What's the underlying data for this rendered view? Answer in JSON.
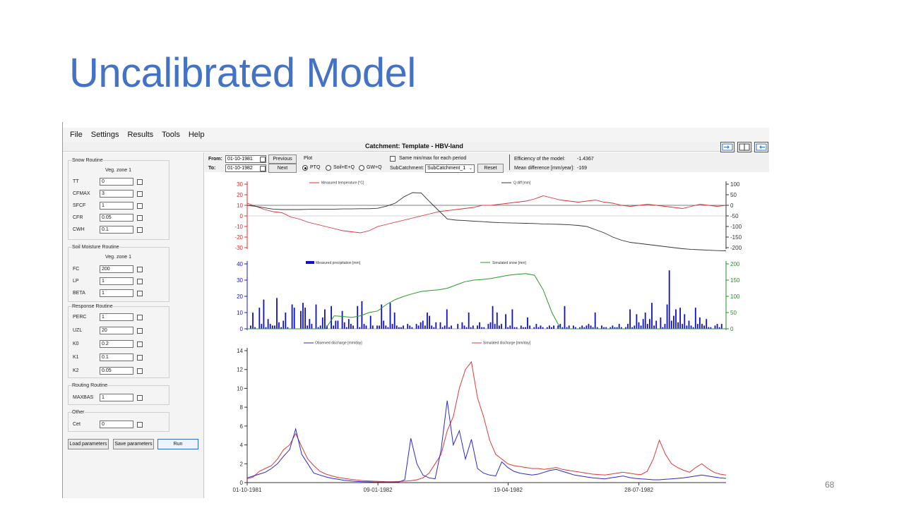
{
  "slide": {
    "title": "Uncalibrated Model",
    "number": "68"
  },
  "app": {
    "menu": [
      "File",
      "Settings",
      "Results",
      "Tools",
      "Help"
    ],
    "catchment_title": "Catchment: Template - HBV-land"
  },
  "left": {
    "snow": {
      "title": "Snow Routine",
      "zone": "Veg. zone 1",
      "params": [
        {
          "label": "TT",
          "value": "0"
        },
        {
          "label": "CFMAX",
          "value": "3"
        },
        {
          "label": "SFCF",
          "value": "1"
        },
        {
          "label": "CFR",
          "value": "0.05"
        },
        {
          "label": "CWH",
          "value": "0.1"
        }
      ]
    },
    "soil": {
      "title": "Soil Moisture Routine",
      "zone": "Veg. zone 1",
      "params": [
        {
          "label": "FC",
          "value": "200"
        },
        {
          "label": "LP",
          "value": "1"
        },
        {
          "label": "BETA",
          "value": "1"
        }
      ]
    },
    "response": {
      "title": "Response Routine",
      "params": [
        {
          "label": "PERC",
          "value": "1"
        },
        {
          "label": "UZL",
          "value": "20"
        },
        {
          "label": "K0",
          "value": "0.2"
        },
        {
          "label": "K1",
          "value": "0.1"
        },
        {
          "label": "K2",
          "value": "0.05"
        }
      ]
    },
    "routing": {
      "title": "Routing Routine",
      "params": [
        {
          "label": "MAXBAS",
          "value": "1"
        }
      ]
    },
    "other": {
      "title": "Other",
      "params": [
        {
          "label": "Cet",
          "value": "0"
        }
      ]
    },
    "buttons": {
      "load": "Load parameters",
      "save": "Save parameters",
      "run": "Run"
    }
  },
  "controls": {
    "from_label": "From:",
    "from_value": "01-10-1981",
    "to_label": "To:",
    "to_value": "01-10-1982",
    "previous": "Previous",
    "next": "Next",
    "plot_label": "Plot",
    "radios": [
      {
        "label": "PTQ",
        "selected": true
      },
      {
        "label": "Soil+E+Q",
        "selected": false
      },
      {
        "label": "GW+Q",
        "selected": false
      }
    ],
    "same_minmax": "Same min/max for each period",
    "subcatchment_label": "SubCatchment:",
    "subcatchment_value": "SubCatchment_1",
    "reset": "Reset",
    "efficiency_label": "Efficiency of the model:",
    "efficiency_value": "-1.4367",
    "meandiff_label": "Mean difference [mm/year]:",
    "meandiff_value": "-169"
  },
  "chart_data": [
    {
      "type": "line",
      "legend": [
        "Measured temperature [°C]",
        "Q diff [mm]"
      ],
      "series": [
        {
          "name": "Measured temperature [°C]",
          "axis": "left",
          "color": "#e03030",
          "values": [
            12,
            9,
            6,
            4,
            3,
            -1,
            -3,
            -6,
            -8,
            -10,
            -12,
            -14,
            -15,
            -16,
            -14,
            -10,
            -8,
            -6,
            -4,
            -2,
            0,
            2,
            4,
            5,
            6,
            7,
            8,
            10,
            10,
            11,
            12,
            13,
            14,
            16,
            19,
            17,
            15,
            14,
            13,
            14,
            15,
            13,
            12,
            10,
            9,
            10,
            11,
            10,
            9,
            8,
            7,
            9,
            11,
            10,
            9,
            10
          ]
        },
        {
          "name": "Q diff [mm]",
          "axis": "right",
          "color": "#333333",
          "values": [
            0,
            -5,
            -12,
            -18,
            -20,
            -20,
            -20,
            -19,
            -18,
            -18,
            -18,
            -17,
            -17,
            -16,
            -16,
            -14,
            -4,
            10,
            40,
            60,
            58,
            15,
            -25,
            -65,
            -70,
            -72,
            -75,
            -77,
            -80,
            -82,
            -83,
            -84,
            -85,
            -86,
            -88,
            -89,
            -90,
            -92,
            -95,
            -100,
            -115,
            -130,
            -150,
            -165,
            -175,
            -180,
            -185,
            -190,
            -195,
            -200,
            -205,
            -208,
            -210,
            -212,
            -214,
            -215
          ]
        }
      ],
      "ylim_left": [
        -30,
        30
      ],
      "ylim_right": [
        -200,
        100
      ],
      "yticks_left": [
        -30,
        -20,
        -10,
        0,
        10,
        20,
        30
      ],
      "yticks_right": [
        -200,
        -150,
        -100,
        -50,
        0,
        50,
        100
      ]
    },
    {
      "type": "bar+line",
      "legend": [
        "Measured precipitation [mm]",
        "Simulated snow [mm]"
      ],
      "precip": [
        2,
        10,
        1,
        0,
        13,
        3,
        18,
        1,
        6,
        3,
        2,
        2,
        19,
        4,
        1,
        5,
        10,
        1,
        0,
        15,
        13,
        0,
        0,
        11,
        16,
        13,
        2,
        6,
        3,
        0,
        15,
        1,
        2,
        7,
        12,
        2,
        0,
        14,
        2,
        5,
        5,
        0,
        11,
        4,
        1,
        6,
        3,
        2,
        0,
        14,
        1,
        17,
        3,
        2,
        0,
        8,
        2,
        0,
        2,
        2,
        15,
        5,
        2,
        1,
        16,
        3,
        10,
        2,
        1,
        1,
        2,
        0,
        3,
        2,
        1,
        0,
        3,
        2,
        4,
        5,
        2,
        10,
        8,
        2,
        1,
        4,
        0,
        4,
        1,
        2,
        12,
        1,
        2,
        0,
        0,
        3,
        0,
        4,
        2,
        1,
        10,
        1,
        2,
        0,
        2,
        4,
        1,
        1,
        0,
        3,
        4,
        14,
        3,
        10,
        2,
        3,
        0,
        9,
        1,
        2,
        12,
        1,
        1,
        0,
        2,
        1,
        1,
        7,
        2,
        0,
        1,
        3,
        1,
        2,
        1,
        0,
        1,
        2,
        1,
        2,
        0,
        2,
        3,
        1,
        14,
        1,
        2,
        0,
        2,
        1,
        0,
        1,
        2,
        1,
        2,
        3,
        2,
        1,
        10,
        1,
        0,
        2,
        1,
        1,
        0,
        1,
        2,
        1,
        1,
        3,
        1,
        0,
        1,
        3,
        12,
        1,
        2,
        9,
        4,
        2,
        6,
        10,
        3,
        6,
        16,
        2,
        5,
        0,
        7,
        1,
        3,
        15,
        36,
        5,
        8,
        12,
        4,
        13,
        3,
        9,
        2,
        5,
        2,
        1,
        13,
        3,
        7,
        3,
        2,
        6,
        1,
        1,
        0,
        2,
        3,
        1,
        3
      ],
      "snow": [
        0,
        0,
        0,
        0,
        0,
        0,
        0,
        0,
        0,
        0,
        40,
        38,
        35,
        40,
        50,
        55,
        75,
        90,
        100,
        108,
        115,
        118,
        120,
        125,
        135,
        145,
        150,
        152,
        155,
        160,
        165,
        168,
        170,
        165,
        120,
        50,
        0,
        0,
        0,
        0,
        0,
        0,
        0,
        0,
        0,
        0,
        0,
        0,
        0,
        0,
        0,
        0,
        0,
        0,
        0,
        0
      ],
      "ylim_left": [
        0,
        40
      ],
      "ylim_right": [
        0,
        200
      ],
      "yticks_left": [
        0,
        10,
        20,
        30,
        40
      ],
      "yticks_right": [
        0,
        50,
        100,
        150,
        200
      ]
    },
    {
      "type": "line",
      "legend": [
        "Observed discharge [mm/day]",
        "Simulated discharge [mm/day]"
      ],
      "observed": [
        0.5,
        0.7,
        0.9,
        1.1,
        1.5,
        2.0,
        2.8,
        3.5,
        5.7,
        3.0,
        2.0,
        1.0,
        0.8,
        0.6,
        0.45,
        0.35,
        0.25,
        0.18,
        0.12,
        0.1,
        0.08,
        0.06,
        0.05,
        0.05,
        0.05,
        0.05,
        0.3,
        4.7,
        2.0,
        0.8,
        0.5,
        0.4,
        3.5,
        8.7,
        4.0,
        5.5,
        2.5,
        4.6,
        1.5,
        1.0,
        0.8,
        0.7,
        2.2,
        1.6,
        1.2,
        1.0,
        0.9,
        0.8,
        0.9,
        1.1,
        1.3,
        1.4,
        1.2,
        1.0,
        0.8,
        0.7,
        0.6,
        0.5,
        0.45,
        0.4,
        0.5,
        0.6,
        0.7,
        0.55,
        0.45,
        0.4,
        0.35,
        0.3,
        0.3,
        0.35,
        0.4,
        0.45,
        0.5,
        0.6,
        0.7,
        0.8,
        0.7,
        0.6,
        0.5,
        0.45
      ],
      "simulated": [
        0.4,
        0.6,
        1.2,
        1.5,
        1.8,
        2.5,
        3.5,
        4.0,
        5.2,
        3.8,
        2.5,
        1.8,
        1.2,
        0.9,
        0.7,
        0.55,
        0.45,
        0.35,
        0.28,
        0.22,
        0.18,
        0.15,
        0.12,
        0.1,
        0.1,
        0.12,
        0.15,
        0.2,
        0.3,
        0.5,
        1.0,
        2.0,
        3.0,
        5.5,
        7.0,
        10.0,
        12.0,
        12.8,
        9.0,
        7.0,
        4.5,
        3.0,
        2.5,
        2.0,
        1.8,
        1.7,
        1.6,
        1.5,
        1.5,
        1.4,
        1.5,
        1.6,
        1.4,
        1.3,
        1.2,
        1.1,
        1.0,
        0.9,
        0.85,
        0.8,
        0.9,
        1.0,
        1.1,
        1.0,
        0.9,
        0.85,
        1.2,
        2.5,
        4.5,
        3.0,
        2.0,
        1.6,
        1.3,
        1.1,
        1.6,
        2.0,
        1.5,
        1.1,
        0.9,
        0.8
      ],
      "ylim": [
        0,
        14
      ],
      "yticks": [
        0,
        2,
        4,
        6,
        8,
        10,
        12,
        14
      ],
      "xticks": [
        "01-10-1981",
        "09-01-1982",
        "19-04-1982",
        "28-07-1982"
      ]
    }
  ]
}
